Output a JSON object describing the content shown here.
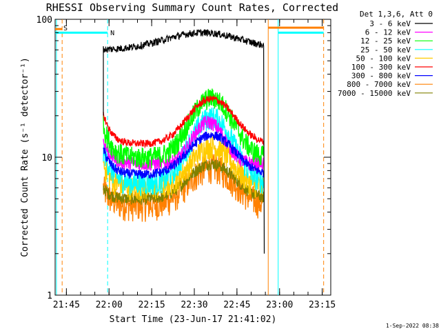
{
  "chart_data": {
    "type": "line",
    "title": "RHESSI Observing Summary Count Rates, Corrected",
    "xlabel": "Start Time (23-Jun-17 21:41:02)",
    "ylabel": "Corrected Count Rate (s⁻¹ detector⁻¹)",
    "y_scale": "log",
    "ylim": [
      1,
      100
    ],
    "xlim": [
      "21:41:02",
      "23:18:00"
    ],
    "x_ticks": [
      "21:45",
      "22:00",
      "22:15",
      "22:30",
      "22:45",
      "23:00",
      "23:15"
    ],
    "y_ticks": [
      "1",
      "10",
      "100"
    ],
    "legend_title": "Det 1,3,6, Att 0",
    "legend_placement": "right",
    "series": [
      {
        "name": "3 - 6 keV",
        "color": "#000000"
      },
      {
        "name": "6 - 12 keV",
        "color": "#ff00ff"
      },
      {
        "name": "12 - 25 keV",
        "color": "#00ff00"
      },
      {
        "name": "25 - 50 keV",
        "color": "#00ffff"
      },
      {
        "name": "50 - 100 keV",
        "color": "#ffcc00"
      },
      {
        "name": "100 - 300 keV",
        "color": "#ff0000"
      },
      {
        "name": "300 - 800 keV",
        "color": "#0000ff"
      },
      {
        "name": "800 - 7000 keV",
        "color": "#ff8000"
      },
      {
        "name": "7000 - 15000 keV",
        "color": "#808000"
      }
    ],
    "flag_labels": [
      "S",
      "N"
    ],
    "timestamp": "1-Sep-2022 08:38"
  }
}
